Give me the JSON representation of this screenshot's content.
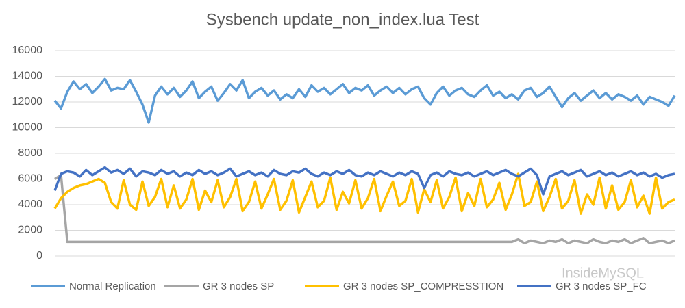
{
  "chart_data": {
    "type": "line",
    "title": "Sysbench update_non_index.lua Test",
    "watermark": "InsideMySQL",
    "ylim": [
      0,
      16000
    ],
    "yticks": [
      0,
      2000,
      4000,
      6000,
      8000,
      10000,
      12000,
      14000,
      16000
    ],
    "grid": true,
    "legend": "bottom",
    "series": [
      {
        "name": "Normal Replication",
        "color": "#5b9bd5",
        "values": [
          12100,
          11500,
          12800,
          13600,
          13000,
          13400,
          12700,
          13200,
          13800,
          12900,
          13100,
          13000,
          13700,
          12800,
          11800,
          10400,
          12500,
          13200,
          12600,
          13100,
          12400,
          12900,
          13600,
          12300,
          12800,
          13200,
          12100,
          12700,
          13400,
          12900,
          13700,
          12300,
          12800,
          13100,
          12500,
          12900,
          12200,
          12600,
          12300,
          13000,
          12400,
          13300,
          12800,
          13100,
          12600,
          13000,
          13400,
          12700,
          13100,
          12900,
          13300,
          12500,
          12900,
          13200,
          12700,
          13100,
          12600,
          13000,
          13200,
          12300,
          11800,
          12700,
          13200,
          12500,
          12900,
          13100,
          12600,
          12400,
          12900,
          13300,
          12500,
          12800,
          12300,
          12600,
          12200,
          12900,
          13100,
          12400,
          12700,
          13200,
          12400,
          11600,
          12300,
          12700,
          12100,
          12500,
          12900,
          12300,
          12700,
          12200,
          12600,
          12400,
          12100,
          12500,
          11800,
          12400,
          12200,
          12000,
          11700,
          12500
        ]
      },
      {
        "name": "GR 3 nodes SP",
        "color": "#a5a5a5",
        "values": [
          6000,
          6300,
          1100,
          1100,
          1100,
          1100,
          1100,
          1100,
          1100,
          1100,
          1100,
          1100,
          1100,
          1100,
          1100,
          1100,
          1100,
          1100,
          1100,
          1100,
          1100,
          1100,
          1100,
          1100,
          1100,
          1100,
          1100,
          1100,
          1100,
          1100,
          1100,
          1100,
          1100,
          1100,
          1100,
          1100,
          1100,
          1100,
          1100,
          1100,
          1100,
          1100,
          1100,
          1100,
          1100,
          1100,
          1100,
          1100,
          1100,
          1100,
          1100,
          1100,
          1100,
          1100,
          1100,
          1100,
          1100,
          1100,
          1100,
          1100,
          1100,
          1100,
          1100,
          1100,
          1100,
          1100,
          1100,
          1100,
          1100,
          1100,
          1100,
          1100,
          1100,
          1100,
          1300,
          1000,
          1200,
          1100,
          1000,
          1200,
          1100,
          1300,
          1000,
          1200,
          1100,
          1000,
          1300,
          1100,
          1000,
          1200,
          1100,
          1300,
          1000,
          1200,
          1400,
          1000,
          1100,
          1200,
          1000,
          1200
        ]
      },
      {
        "name": "GR 3 nodes SP_COMPRESSTION",
        "color": "#ffc000",
        "values": [
          3700,
          4500,
          5000,
          5300,
          5500,
          5600,
          5800,
          6000,
          5700,
          4200,
          3700,
          5900,
          4000,
          3600,
          5800,
          3900,
          4600,
          6000,
          3800,
          5500,
          3700,
          4400,
          6000,
          3600,
          5100,
          4200,
          5900,
          3800,
          4600,
          6000,
          3500,
          4200,
          5800,
          3700,
          4800,
          6000,
          3600,
          4300,
          5900,
          3400,
          4600,
          5800,
          3800,
          4300,
          6100,
          3600,
          5000,
          4100,
          5900,
          3700,
          4500,
          6000,
          3500,
          4700,
          5800,
          3900,
          4300,
          6000,
          3400,
          5200,
          4200,
          5900,
          3700,
          4600,
          6100,
          3500,
          4900,
          3900,
          6000,
          3800,
          4400,
          5700,
          3600,
          4800,
          6400,
          3900,
          4200,
          5800,
          3500,
          4600,
          6000,
          3700,
          4300,
          5900,
          3300,
          4800,
          4000,
          6100,
          3700,
          5500,
          3600,
          4200,
          5900,
          3800,
          4700,
          3300,
          6100,
          3700,
          4200,
          4400
        ]
      },
      {
        "name": "GR 3 nodes SP_FC",
        "color": "#4472c4",
        "values": [
          5100,
          6400,
          6600,
          6500,
          6200,
          6700,
          6300,
          6600,
          6900,
          6500,
          6700,
          6400,
          6800,
          6200,
          6600,
          6500,
          6300,
          6700,
          6400,
          6600,
          6200,
          6500,
          6300,
          6700,
          6400,
          6600,
          6300,
          6500,
          6800,
          6200,
          6400,
          6600,
          6300,
          6500,
          6200,
          6700,
          6400,
          6300,
          6600,
          6500,
          6800,
          6400,
          6200,
          6500,
          6300,
          6600,
          6400,
          6700,
          6300,
          6200,
          6500,
          6300,
          6600,
          6400,
          6200,
          6500,
          6300,
          6600,
          6400,
          5300,
          6300,
          6500,
          6200,
          6600,
          6400,
          6300,
          6500,
          6200,
          6400,
          6600,
          6300,
          6500,
          6700,
          6400,
          6200,
          6500,
          6800,
          6300,
          4800,
          6200,
          6400,
          6600,
          6300,
          6500,
          6700,
          6200,
          6400,
          6600,
          6300,
          6500,
          6200,
          6400,
          6600,
          6300,
          6500,
          6200,
          6400,
          6100,
          6300,
          6400
        ]
      }
    ]
  }
}
